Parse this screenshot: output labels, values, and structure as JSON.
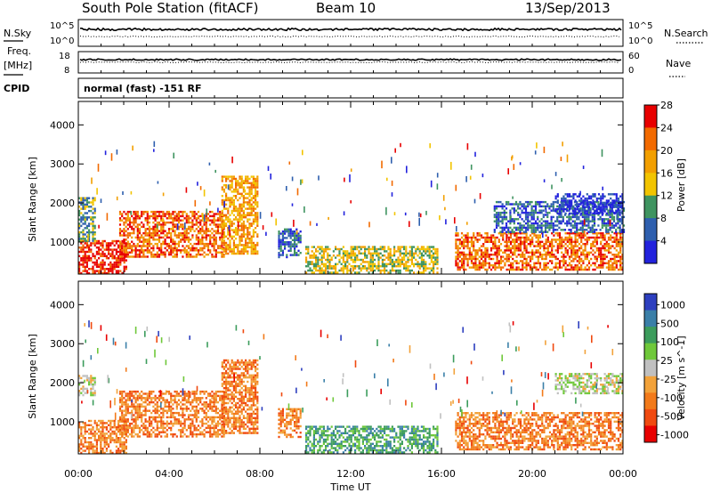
{
  "header": {
    "station": "South Pole Station (fitACF)",
    "beam": "Beam 10",
    "date": "13/Sep/2013"
  },
  "params": {
    "nsky_label": "N.Sky",
    "nsearch_label": "N.Search",
    "freq_label_1": "Freq.",
    "freq_label_2": "[MHz]",
    "nave_label": "Nave",
    "cpid_label": "CPID",
    "cpid_text": "normal (fast) -151 RF",
    "nsky_ticks": [
      "10^5",
      "10^0"
    ],
    "nsearch_ticks": [
      "10^5",
      "10^0"
    ],
    "freq_ticks": [
      "18",
      "8"
    ],
    "nave_ticks": [
      "60",
      "0"
    ]
  },
  "chart_data": [
    {
      "type": "heatmap",
      "title": "",
      "xlabel": "",
      "ylabel": "Slant Range [km]",
      "x_ticks": [
        "00:00",
        "04:00",
        "08:00",
        "12:00",
        "16:00",
        "20:00",
        "00:00"
      ],
      "y_ticks": [
        "1000",
        "2000",
        "3000",
        "4000"
      ],
      "xlim_hours": [
        0,
        24
      ],
      "ylim_km": [
        180,
        4600
      ],
      "colorbar": {
        "label": "Power [dB]",
        "ticks": [
          "4",
          "8",
          "12",
          "16",
          "20",
          "24",
          "28"
        ],
        "colors": [
          "#2222dd",
          "#2e5fae",
          "#3f9460",
          "#f2c400",
          "#f29f00",
          "#f26a00",
          "#e80000"
        ]
      },
      "echo_regions": [
        {
          "t0": 0.0,
          "t1": 2.1,
          "r0": 200,
          "r1": 1050,
          "level": 6
        },
        {
          "t0": 0.0,
          "t1": 0.7,
          "r0": 1050,
          "r1": 2150,
          "level": 2
        },
        {
          "t0": 1.8,
          "t1": 6.4,
          "r0": 650,
          "r1": 1800,
          "level": 5
        },
        {
          "t0": 6.3,
          "t1": 7.9,
          "r0": 700,
          "r1": 2700,
          "level": 4
        },
        {
          "t0": 8.8,
          "t1": 9.8,
          "r0": 600,
          "r1": 1350,
          "level": 1
        },
        {
          "t0": 10.0,
          "t1": 15.8,
          "r0": 230,
          "r1": 900,
          "level": 3
        },
        {
          "t0": 16.6,
          "t1": 24.0,
          "r0": 280,
          "r1": 1250,
          "level": 5
        },
        {
          "t0": 18.3,
          "t1": 24.0,
          "r0": 1250,
          "r1": 2050,
          "level": 1
        },
        {
          "t0": 21.0,
          "t1": 24.0,
          "r0": 1750,
          "r1": 2250,
          "level": 0
        }
      ]
    },
    {
      "type": "heatmap",
      "title": "",
      "xlabel": "Time UT",
      "ylabel": "Slant Range [km]",
      "x_ticks": [
        "00:00",
        "04:00",
        "08:00",
        "12:00",
        "16:00",
        "20:00",
        "00:00"
      ],
      "y_ticks": [
        "1000",
        "2000",
        "3000",
        "4000"
      ],
      "xlim_hours": [
        0,
        24
      ],
      "ylim_km": [
        180,
        4600
      ],
      "colorbar": {
        "label": "Velocity [m s^-1]",
        "ticks": [
          "1000",
          "500",
          "100",
          "25",
          "-25",
          "-100",
          "-500",
          "-1000"
        ],
        "colors": [
          "#2d3fbf",
          "#3a7fa8",
          "#3c9c5c",
          "#6fc83a",
          "#c0c0c0",
          "#f2a23a",
          "#f27a1a",
          "#f04a10",
          "#e80000"
        ]
      },
      "echo_regions": [
        {
          "t0": 0.0,
          "t1": 2.1,
          "r0": 200,
          "r1": 1050,
          "level": 6
        },
        {
          "t0": 0.0,
          "t1": 0.7,
          "r0": 1700,
          "r1": 2200,
          "level": 4
        },
        {
          "t0": 1.8,
          "t1": 6.4,
          "r0": 650,
          "r1": 1800,
          "level": 6
        },
        {
          "t0": 6.3,
          "t1": 7.9,
          "r0": 700,
          "r1": 2600,
          "level": 6
        },
        {
          "t0": 8.8,
          "t1": 9.8,
          "r0": 600,
          "r1": 1350,
          "level": 6
        },
        {
          "t0": 10.0,
          "t1": 15.8,
          "r0": 230,
          "r1": 900,
          "level": 2
        },
        {
          "t0": 16.6,
          "t1": 24.0,
          "r0": 280,
          "r1": 1250,
          "level": 6
        },
        {
          "t0": 21.0,
          "t1": 24.0,
          "r0": 1750,
          "r1": 2250,
          "level": 4
        }
      ]
    }
  ]
}
